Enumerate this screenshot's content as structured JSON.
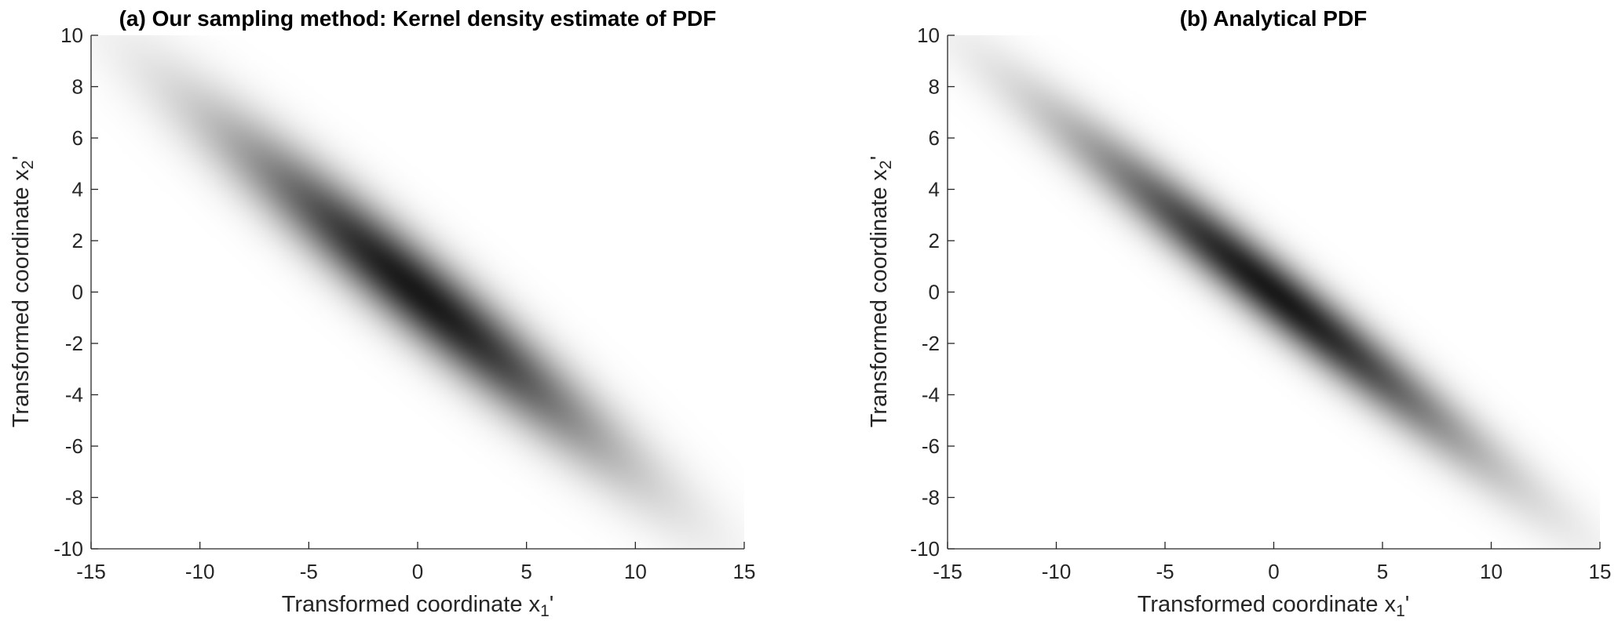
{
  "chart_data": [
    {
      "type": "heatmap",
      "title": "(a) Our sampling method: Kernel density estimate of PDF",
      "xlabel": "Transformed coordinate x",
      "xlabel_sub": "1",
      "xlabel_suffix": "'",
      "ylabel": "Transformed coordinate x",
      "ylabel_sub": "2",
      "ylabel_suffix": "'",
      "xlim": [
        -15,
        15
      ],
      "ylim": [
        -10,
        10
      ],
      "xticks": [
        "-15",
        "-10",
        "-5",
        "0",
        "5",
        "10",
        "15"
      ],
      "yticks": [
        "-10",
        "-8",
        "-6",
        "-4",
        "-2",
        "0",
        "2",
        "4",
        "6",
        "8",
        "10"
      ],
      "colormap": "gray (white = 0, black = max)",
      "density": {
        "center": [
          0,
          0
        ],
        "sigma_x1": 6.0,
        "sigma_x2": 4.3,
        "correlation": -0.95
      }
    },
    {
      "type": "heatmap",
      "title": "(b) Analytical PDF",
      "xlabel": "Transformed coordinate x",
      "xlabel_sub": "1",
      "xlabel_suffix": "'",
      "ylabel": "Transformed coordinate x",
      "ylabel_sub": "2",
      "ylabel_suffix": "'",
      "xlim": [
        -15,
        15
      ],
      "ylim": [
        -10,
        10
      ],
      "xticks": [
        "-15",
        "-10",
        "-5",
        "0",
        "5",
        "10",
        "15"
      ],
      "yticks": [
        "-10",
        "-8",
        "-6",
        "-4",
        "-2",
        "0",
        "2",
        "4",
        "6",
        "8",
        "10"
      ],
      "colormap": "gray (white = 0, black = max)",
      "density": {
        "center": [
          0,
          0
        ],
        "sigma_x1": 6.3,
        "sigma_x2": 4.3,
        "correlation": -0.97
      }
    }
  ]
}
